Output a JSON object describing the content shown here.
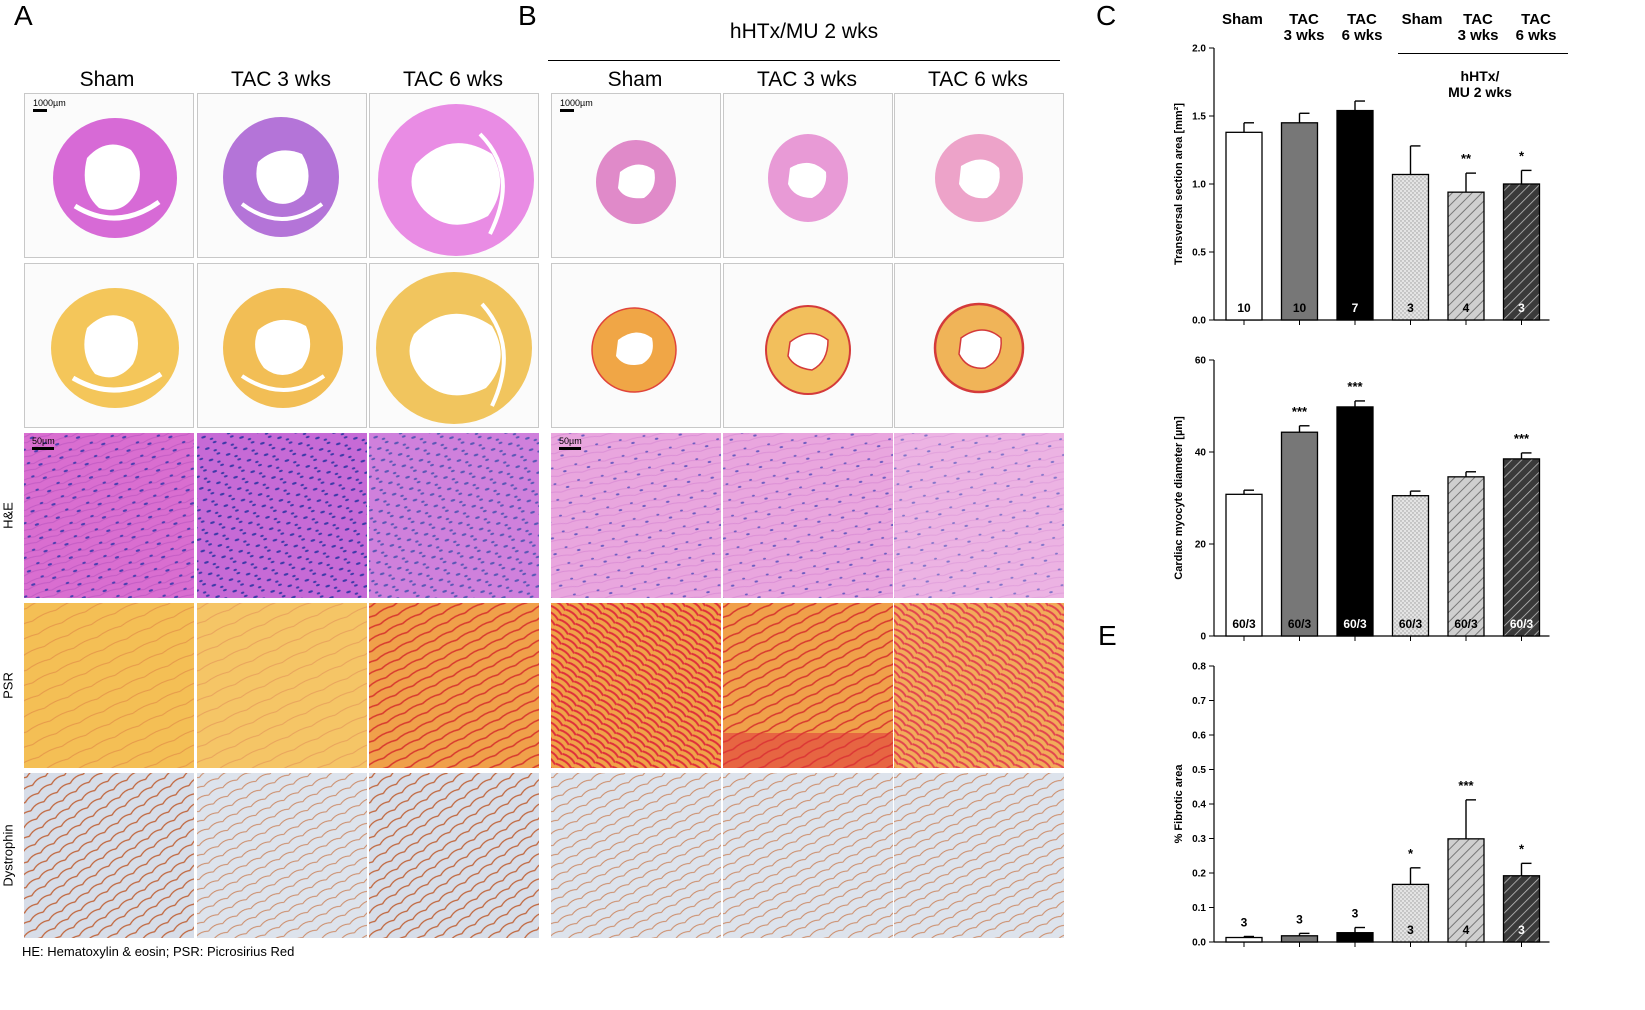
{
  "panels": {
    "A": {
      "letter": "A",
      "columns": [
        "Sham",
        "TAC 3 wks",
        "TAC 6 wks"
      ]
    },
    "B": {
      "letter": "B",
      "title": "hHTx/MU  2 wks",
      "columns": [
        "Sham",
        "TAC 3 wks",
        "TAC 6 wks"
      ]
    },
    "C": {
      "letter": "C"
    },
    "E": {
      "letter": "E"
    }
  },
  "row_labels": {
    "he": "H&E",
    "psr": "PSR",
    "dys": "Dystrophin"
  },
  "scalebars": {
    "a_top": "1000µm",
    "a_he": "50µm",
    "b_top": "1000µm",
    "b_he": "50µm"
  },
  "footnote": "HE: Hematoxylin & eosin; PSR: Picrosirius Red",
  "chart_header": {
    "groups": [
      "Sham",
      "TAC\n3 wks",
      "TAC\n6 wks",
      "Sham",
      "TAC\n3 wks",
      "TAC\n6 wks"
    ],
    "subgroup": "hHTx/\nMU 2 wks"
  },
  "colors": {
    "he_fill": "#d96ed0",
    "he_bg": "#e88be0",
    "he_light": "#e8a0d9",
    "psr_fill": "#f2c24a",
    "psr_red": "#e03a36",
    "dys_bg": "#d6dbe6",
    "dys_line": "#c0643a"
  },
  "chart_data": [
    {
      "type": "bar",
      "ylabel": "Transversal section area [mm²]",
      "ylim": [
        0,
        2.0
      ],
      "yticks": [
        "0.0",
        "0.5",
        "1.0",
        "1.5",
        "2.0"
      ],
      "categories": [
        "Sham",
        "TAC 3 wks",
        "TAC 6 wks",
        "Sham (hHTx/MU)",
        "TAC 3 wks (hHTx/MU)",
        "TAC 6 wks (hHTx/MU)"
      ],
      "values": [
        1.38,
        1.45,
        1.54,
        1.07,
        0.94,
        1.0
      ],
      "errors": [
        0.07,
        0.07,
        0.07,
        0.21,
        0.14,
        0.1
      ],
      "n_labels": [
        "10",
        "10",
        "7",
        "3",
        "4",
        "3"
      ],
      "sig": [
        "",
        "",
        "",
        "",
        "**",
        "*"
      ]
    },
    {
      "type": "bar",
      "ylabel": "Cardiac myocyte diameter [µm]",
      "ylim": [
        0,
        60
      ],
      "yticks": [
        "0",
        "20",
        "40",
        "60"
      ],
      "categories": [
        "Sham",
        "TAC 3 wks",
        "TAC 6 wks",
        "Sham (hHTx/MU)",
        "TAC 3 wks (hHTx/MU)",
        "TAC 6 wks (hHTx/MU)"
      ],
      "values": [
        30.8,
        44.3,
        49.8,
        30.5,
        34.6,
        38.5
      ],
      "errors": [
        0.9,
        1.4,
        1.3,
        1.0,
        1.1,
        1.3
      ],
      "n_labels": [
        "60/3",
        "60/3",
        "60/3",
        "60/3",
        "60/3",
        "60/3"
      ],
      "sig": [
        "",
        "***",
        "***",
        "",
        "",
        "***"
      ]
    },
    {
      "type": "bar",
      "ylabel": "% Fibrotic area",
      "ylim": [
        0,
        0.8
      ],
      "yticks": [
        "0.0",
        "0.1",
        "0.2",
        "0.3",
        "0.4",
        "0.5",
        "0.6",
        "0.7",
        "0.8"
      ],
      "categories": [
        "Sham",
        "TAC 3 wks",
        "TAC 6 wks",
        "Sham (hHTx/MU)",
        "TAC 3 wks (hHTx/MU)",
        "TAC 6 wks (hHTx/MU)"
      ],
      "values": [
        0.013,
        0.018,
        0.027,
        0.167,
        0.299,
        0.192
      ],
      "errors": [
        0.003,
        0.007,
        0.015,
        0.048,
        0.113,
        0.036
      ],
      "n_labels": [
        "3",
        "3",
        "3",
        "3",
        "4",
        "3"
      ],
      "n_label_top": [
        true,
        true,
        true,
        false,
        false,
        false
      ],
      "sig": [
        "",
        "",
        "",
        "*",
        "***",
        "*"
      ]
    }
  ]
}
